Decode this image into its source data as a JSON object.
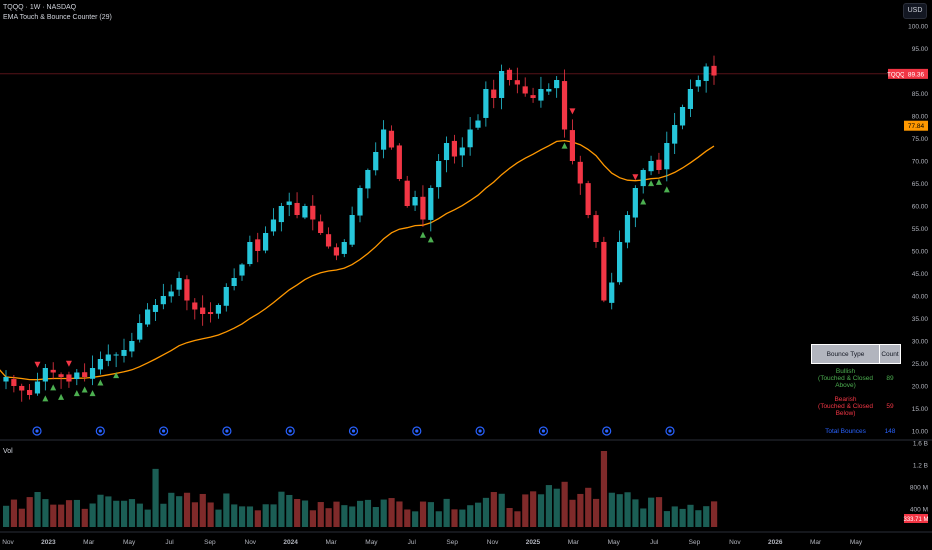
{
  "header": {
    "symbol_line": "TQQQ · 1W · NASDAQ",
    "indicator_name": "EMA Touch & Bounce Counter (29)"
  },
  "currency_button": "USD",
  "price_axis": {
    "ticks": [
      "100.00",
      "95.00",
      "90.00",
      "85.00",
      "80.00",
      "75.00",
      "70.00",
      "65.00",
      "60.00",
      "55.00",
      "50.00",
      "45.00",
      "40.00",
      "35.00",
      "30.00",
      "25.00",
      "20.00",
      "15.00",
      "10.00"
    ],
    "symbol_badge": "TQQQ",
    "last_price": "89.36",
    "ema_value": "77.84"
  },
  "volume_axis": {
    "label": "Vol",
    "ticks": [
      "1.6 B",
      "1.2 B",
      "800 M",
      "400 M"
    ],
    "last_volume": "333.71 M"
  },
  "time_axis": [
    "Nov",
    "2023",
    "Mar",
    "May",
    "Jul",
    "Sep",
    "Nov",
    "2024",
    "Mar",
    "May",
    "Jul",
    "Sep",
    "Nov",
    "2025",
    "Mar",
    "May",
    "Jul",
    "Sep",
    "Nov",
    "2026",
    "Mar",
    "May"
  ],
  "bounce_table": {
    "headers": [
      "Bounce Type",
      "Count"
    ],
    "bullish": {
      "label": "Bullish",
      "sub": "(Touched & Closed Above)",
      "count": "89"
    },
    "bearish": {
      "label": "Bearish",
      "sub": "(Touched & Closed Below)",
      "count": "59"
    },
    "total": {
      "label": "Total Bounces",
      "count": "148"
    }
  },
  "colors": {
    "bull": "#26c6da",
    "bear": "#f23645",
    "ema": "#ff9800",
    "vol_up": "#1b5e55",
    "vol_down": "#7f2a2a",
    "bull_marker": "#4caf50",
    "bear_marker": "#f23645",
    "earnings": "#2962ff"
  },
  "chart_data": {
    "type": "candlestick",
    "ylim": [
      10,
      100
    ],
    "close_start": 22,
    "close_path": [
      22,
      20,
      19,
      18,
      21,
      24,
      23,
      22,
      21,
      23,
      22,
      24,
      26,
      27,
      27,
      28,
      30,
      34,
      37,
      38,
      40,
      41,
      44,
      39,
      37,
      36,
      36,
      38,
      42,
      44,
      47,
      52,
      50,
      54,
      57,
      60,
      61,
      58,
      60,
      57,
      54,
      51,
      49,
      52,
      58,
      64,
      68,
      72,
      77,
      73,
      66,
      60,
      62,
      57,
      64,
      70,
      74,
      71,
      73,
      77,
      79,
      86,
      84,
      90,
      88,
      87,
      85,
      84,
      86,
      86,
      88,
      77,
      70,
      65,
      58,
      52,
      39,
      43,
      52,
      58,
      64,
      68,
      70,
      68,
      74,
      78,
      82,
      86,
      88,
      91,
      89
    ],
    "ema_period": 29,
    "last_price": 89.36,
    "ema_last": 77.84,
    "bounce_counts": {
      "bullish": 89,
      "bearish": 59,
      "total": 148
    }
  }
}
